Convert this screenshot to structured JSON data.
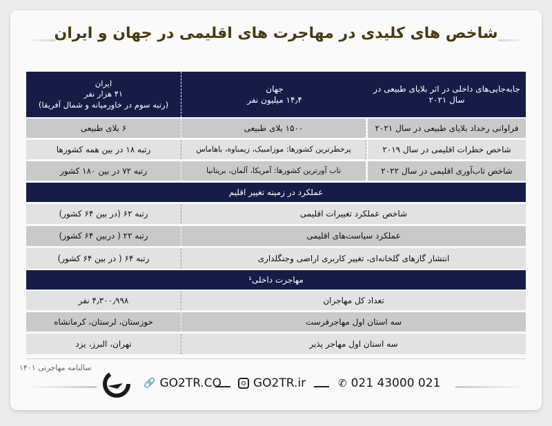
{
  "title": "شاخص های کلیدی در مهاجرت های اقلیمی در جهان و ایران",
  "table": {
    "header": {
      "indicator": "جابه‌جایی‌های داخلی در اثر بلایای طبیعی در سال ۲۰۲۱",
      "world": "جهان\n۱۴٫۴ میلیون نفر",
      "iran": "ایران\n۴۱ هزار نفر\n(رتبه سوم در خاورمیانه و شمال آفریقا)"
    },
    "rows1": [
      {
        "indicator": "فراوانی رخداد بلایای طبیعی در سال ۲۰۲۱",
        "world": "۱۵۰۰ بلای طبیعی",
        "iran": "۶ بلای طبیعی"
      },
      {
        "indicator": "شاخص خطرات اقلیمی در سال ۲۰۱۹",
        "world": "پرخطرترین کشورها: موزامبیک، زیمباوه، باهاماس",
        "iran": "رتبه ۱۸ در بین همه کشورها"
      },
      {
        "indicator": "شاخص تاب‌آوری اقلیمی در سال ۲۰۲۲",
        "world": "تاب آورترین کشورها: آمریکا، آلمان، بریتانیا",
        "iran": "رتبه ۷۲ در بین ۱۸۰ کشور"
      }
    ],
    "section2": "عملکرد در زمینه تغییر اقلیم",
    "rows2": [
      {
        "indicator": "شاخص عملکرد تغییرات اقلیمی",
        "iran": "رتبه ۶۲  (در بین ۶۴ کشور)"
      },
      {
        "indicator": "عملکرد سیاست‌های اقلیمی",
        "iran": "رتبه ۲۲ ( دربین ۶۴ کشور)"
      },
      {
        "indicator": "انتشار گازهای گلخانه‌ای، تغییر کاربری اراضی وجنگلداری",
        "iran": "رتبه ۶۴ ( در بین ۶۴ کشور)"
      }
    ],
    "section3": "مهاجرت داخلی¹",
    "rows3": [
      {
        "indicator": "تعداد کل مهاجران",
        "iran": "۴٫۳۰۰٫۹۹۸ نفر"
      },
      {
        "indicator": "سه استان اول مهاجرفرست",
        "iran": "خوزستان، لرستان، کرمانشاه"
      },
      {
        "indicator": "سه استان اول مهاجر پذیر",
        "iran": "تهران، البرز، یزد"
      }
    ]
  },
  "source": "سالنامه مهاجرتی ۱۴۰۱",
  "footer": {
    "website": "GO2TR.CO",
    "instagram": "GO2TR.ir",
    "phone": "021 43000 021",
    "icons": [
      "link-icon",
      "instagram-icon",
      "phone-icon"
    ]
  },
  "colors": {
    "header": "#141c47",
    "title": "#4a3a10",
    "row_dark": "#c9c9c9",
    "row_light": "#e2e2e2"
  }
}
